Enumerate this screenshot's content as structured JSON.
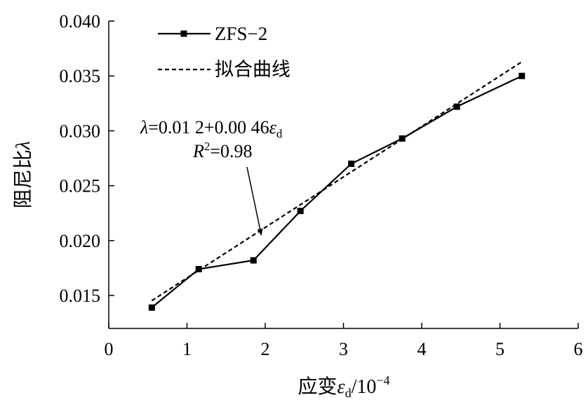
{
  "chart_data": {
    "type": "line",
    "xlabel": {
      "main": "应变",
      "symbol": "ε",
      "sub": "d",
      "unit": "/10",
      "sup": "−4"
    },
    "ylabel": {
      "main": "阻尼比",
      "symbol": "λ"
    },
    "xlim": [
      0,
      6
    ],
    "ylim": [
      0.012,
      0.04
    ],
    "xticks": [
      0,
      1,
      2,
      3,
      4,
      5,
      6
    ],
    "xtick_labels": [
      "0",
      "1",
      "2",
      "3",
      "4",
      "5",
      "6"
    ],
    "yticks": [
      0.015,
      0.02,
      0.025,
      0.03,
      0.035,
      0.04
    ],
    "ytick_labels": [
      "0.015",
      "0.020",
      "0.025",
      "0.030",
      "0.035",
      "0.040"
    ],
    "grid": false,
    "legend": {
      "placement": "top-left"
    },
    "series": [
      {
        "name": "ZFS−2",
        "style": "solid-with-square-markers",
        "color": "#000000",
        "x": [
          0.55,
          1.15,
          1.85,
          2.45,
          3.1,
          3.75,
          4.45,
          5.28
        ],
        "y": [
          0.0139,
          0.0174,
          0.0182,
          0.0227,
          0.027,
          0.0293,
          0.0322,
          0.035
        ]
      },
      {
        "name": "拟合曲线",
        "style": "dashed",
        "color": "#000000",
        "fit": {
          "intercept": 0.012,
          "slope": 0.0046
        },
        "x": [
          0.55,
          5.28
        ]
      }
    ],
    "annotation": {
      "equation": {
        "symbol": "λ",
        "text": "=0.01 2+0.00 46",
        "eps": "ε",
        "sub": "d"
      },
      "r2": {
        "symbol": "R",
        "sup": "2",
        "text": "=0.98"
      },
      "arrow_to": {
        "x": 1.95,
        "y": 0.0205
      }
    }
  }
}
